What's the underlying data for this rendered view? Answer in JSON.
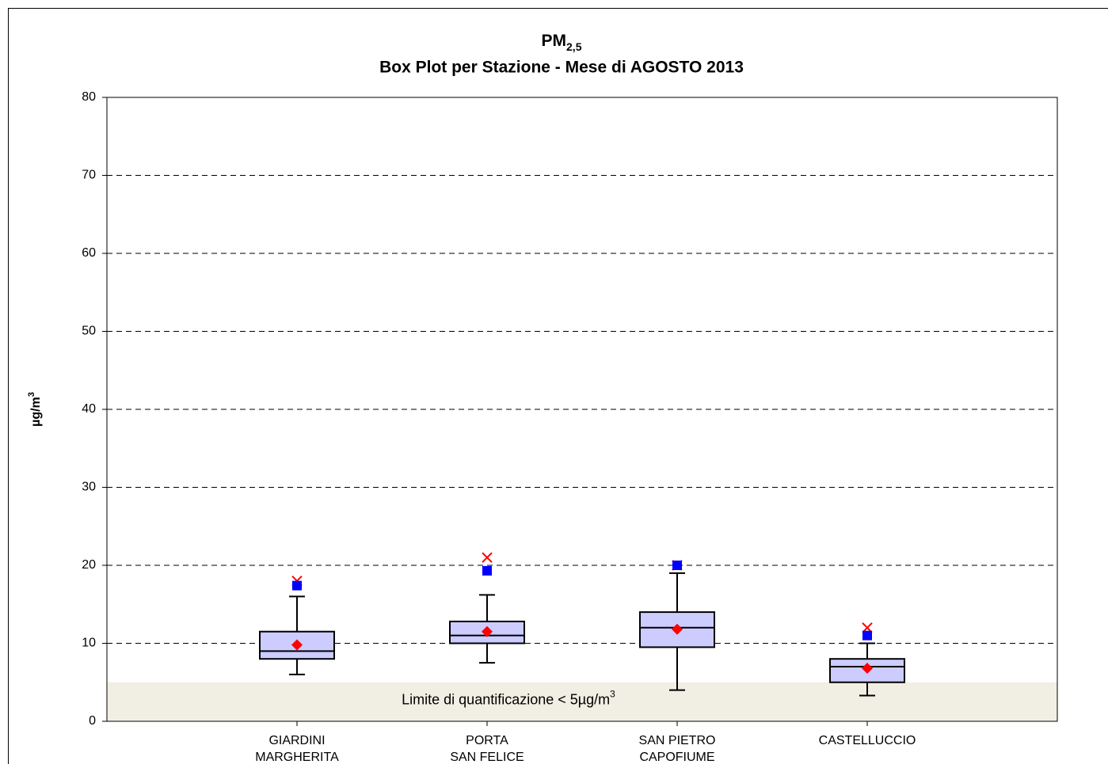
{
  "chart_data": {
    "type": "box",
    "title": "PM",
    "title_sub": "2,5",
    "subtitle": "Box Plot per Stazione - Mese di AGOSTO 2013",
    "y_label": "µg/m",
    "y_label_sup": "3",
    "band": [
      0,
      5
    ],
    "band_color": "#f1eee3",
    "band_label": "Limite di quantificazione < 5µg/m",
    "band_label_sup": "3",
    "categories": [
      [
        "GIARDINI",
        "MARGHERITA"
      ],
      [
        "PORTA",
        "SAN FELICE"
      ],
      [
        "SAN PIETRO",
        "CAPOFIUME"
      ],
      [
        "CASTELLUCCIO"
      ]
    ],
    "boxes": [
      {
        "whisker_low": 6,
        "q1": 8,
        "median": 9,
        "q3": 11.5,
        "whisker_high": 16,
        "mean": 9.8,
        "square": 17.4,
        "cross": 18
      },
      {
        "whisker_low": 7.5,
        "q1": 10,
        "median": 11,
        "q3": 12.8,
        "whisker_high": 16.2,
        "mean": 11.5,
        "square": 19.3,
        "cross": 21
      },
      {
        "whisker_low": 4,
        "q1": 9.5,
        "median": 12,
        "q3": 14,
        "whisker_high": 19,
        "mean": 11.8,
        "square": 20,
        "cross": 20
      },
      {
        "whisker_low": 3.3,
        "q1": 5,
        "median": 7,
        "q3": 8,
        "whisker_high": 10,
        "mean": 6.8,
        "square": 11,
        "cross": 12
      }
    ],
    "box_color": "#ccccff",
    "mean_color": "#ff0000",
    "square_color": "#0000ff",
    "cross_color": "#ff0000",
    "ylim": [
      0,
      80
    ],
    "yticks": [
      0,
      10,
      20,
      30,
      40,
      50,
      60,
      70,
      80
    ],
    "grid": true
  }
}
